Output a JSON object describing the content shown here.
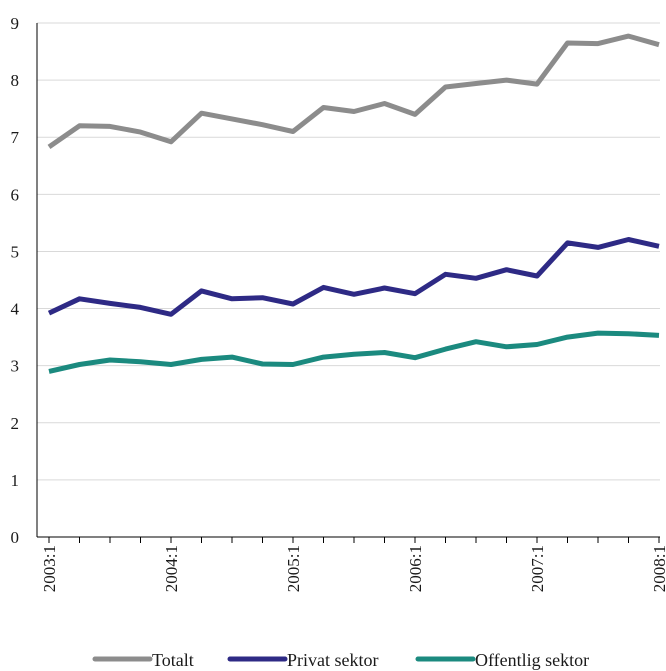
{
  "chart_data": {
    "type": "line",
    "title": "",
    "xlabel": "",
    "ylabel": "",
    "ylim": [
      0,
      9
    ],
    "yticks": [
      0,
      1,
      2,
      3,
      4,
      5,
      6,
      7,
      8,
      9
    ],
    "grid": true,
    "legend_position": "bottom",
    "x": [
      "2003:1",
      "2003:2",
      "2003:3",
      "2003:4",
      "2004:1",
      "2004:2",
      "2004:3",
      "2004:4",
      "2005:1",
      "2005:2",
      "2005:3",
      "2005:4",
      "2006:1",
      "2006:2",
      "2006:3",
      "2006:4",
      "2007:1",
      "2007:2",
      "2007:3",
      "2007:4",
      "2008:1"
    ],
    "x_tick_labels": [
      "2003:1",
      "2004:1",
      "2005:1",
      "2006:1",
      "2007:1",
      "2008:1"
    ],
    "series": [
      {
        "name": "Totalt",
        "color": "#8c8c8c",
        "values": [
          6.83,
          7.2,
          7.19,
          7.09,
          6.92,
          7.42,
          7.32,
          7.22,
          7.1,
          7.52,
          7.45,
          7.59,
          7.4,
          7.88,
          7.94,
          8.0,
          7.93,
          8.65,
          8.64,
          8.77,
          8.62
        ]
      },
      {
        "name": "Privat sektor",
        "color": "#2e2a85",
        "values": [
          3.92,
          4.17,
          4.09,
          4.02,
          3.9,
          4.31,
          4.17,
          4.19,
          4.08,
          4.37,
          4.25,
          4.36,
          4.26,
          4.6,
          4.53,
          4.68,
          4.57,
          5.15,
          5.07,
          5.21,
          5.09
        ]
      },
      {
        "name": "Offentlig sektor",
        "color": "#1b8a7f",
        "values": [
          2.9,
          3.02,
          3.1,
          3.07,
          3.02,
          3.11,
          3.15,
          3.03,
          3.02,
          3.15,
          3.2,
          3.23,
          3.14,
          3.29,
          3.42,
          3.33,
          3.37,
          3.5,
          3.57,
          3.56,
          3.53
        ]
      }
    ]
  }
}
